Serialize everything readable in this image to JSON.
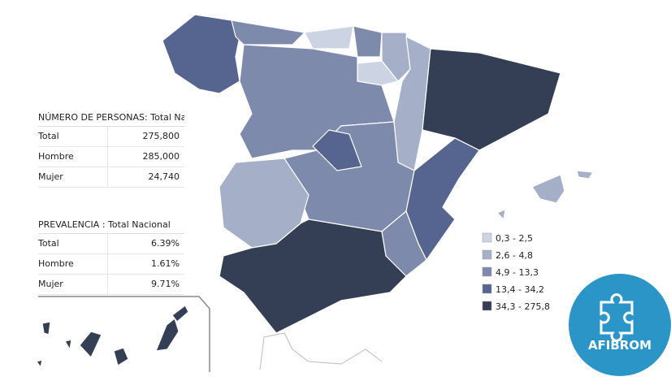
{
  "tables": [
    {
      "title": "NÚMERO DE PERSONAS: Total Naci",
      "rows": [
        [
          "Total",
          "275,800"
        ],
        [
          "Hombre",
          "285,000"
        ],
        [
          "Mujer",
          "24,740"
        ]
      ]
    },
    {
      "title": "PREVALENCIA : Total Nacional",
      "rows": [
        [
          "Total",
          "6.39%"
        ],
        [
          "Hombre",
          "1.61%"
        ],
        [
          "Mujer",
          "9.71%"
        ]
      ]
    }
  ],
  "legend": [
    {
      "label": "0,3 - 2,5",
      "color": "#ccd3e3"
    },
    {
      "label": "2,6 - 4,8",
      "color": "#a5b0c8"
    },
    {
      "label": "4,9 - 13,3",
      "color": "#7d8aab"
    },
    {
      "label": "13,4 - 34,2",
      "color": "#56658f"
    },
    {
      "label": "34,3 - 275,8",
      "color": "#343e55"
    }
  ],
  "logo": {
    "text": "AFIBROM"
  }
}
